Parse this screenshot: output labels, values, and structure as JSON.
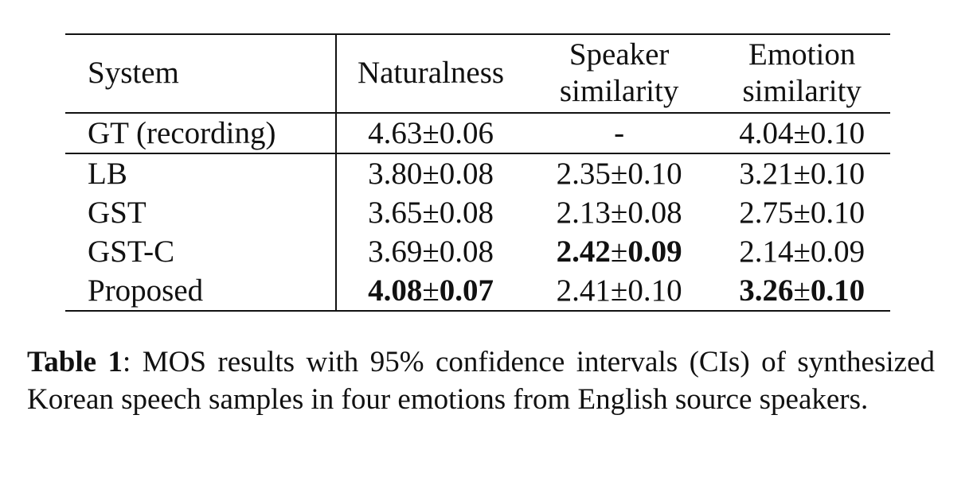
{
  "table": {
    "headers": {
      "system": "System",
      "naturalness": "Naturalness",
      "speaker_line1": "Speaker",
      "speaker_line2": "similarity",
      "emotion_line1": "Emotion",
      "emotion_line2": "similarity"
    },
    "gt_row": {
      "system": "GT (recording)",
      "naturalness": {
        "mean": "4.63",
        "pm": "±",
        "ci": "0.06"
      },
      "speaker": "-",
      "emotion": {
        "mean": "4.04",
        "pm": "±",
        "ci": "0.10"
      }
    },
    "rows": [
      {
        "system": "LB",
        "naturalness": {
          "mean": "3.80",
          "pm": "±",
          "ci": "0.08"
        },
        "speaker": {
          "mean": "2.35",
          "pm": "±",
          "ci": "0.10"
        },
        "emotion": {
          "mean": "3.21",
          "pm": "±",
          "ci": "0.10"
        }
      },
      {
        "system": "GST",
        "naturalness": {
          "mean": "3.65",
          "pm": "±",
          "ci": "0.08"
        },
        "speaker": {
          "mean": "2.13",
          "pm": "±",
          "ci": "0.08"
        },
        "emotion": {
          "mean": "2.75",
          "pm": "±",
          "ci": "0.10"
        }
      },
      {
        "system": "GST-C",
        "naturalness": {
          "mean": "3.69",
          "pm": "±",
          "ci": "0.08"
        },
        "speaker": {
          "mean": "2.42",
          "pm": "±",
          "ci": "0.09"
        },
        "emotion": {
          "mean": "2.14",
          "pm": "±",
          "ci": "0.09"
        }
      },
      {
        "system": "Proposed",
        "naturalness": {
          "mean": "4.08",
          "pm": "±",
          "ci": "0.07"
        },
        "speaker": {
          "mean": "2.41",
          "pm": "±",
          "ci": "0.10"
        },
        "emotion": {
          "mean": "3.26",
          "pm": "±",
          "ci": "0.10"
        }
      }
    ]
  },
  "caption": {
    "label": "Table 1",
    "text": ": MOS results with 95% confidence intervals (CIs) of synthesized Korean speech samples in four emotions from English source speakers."
  }
}
